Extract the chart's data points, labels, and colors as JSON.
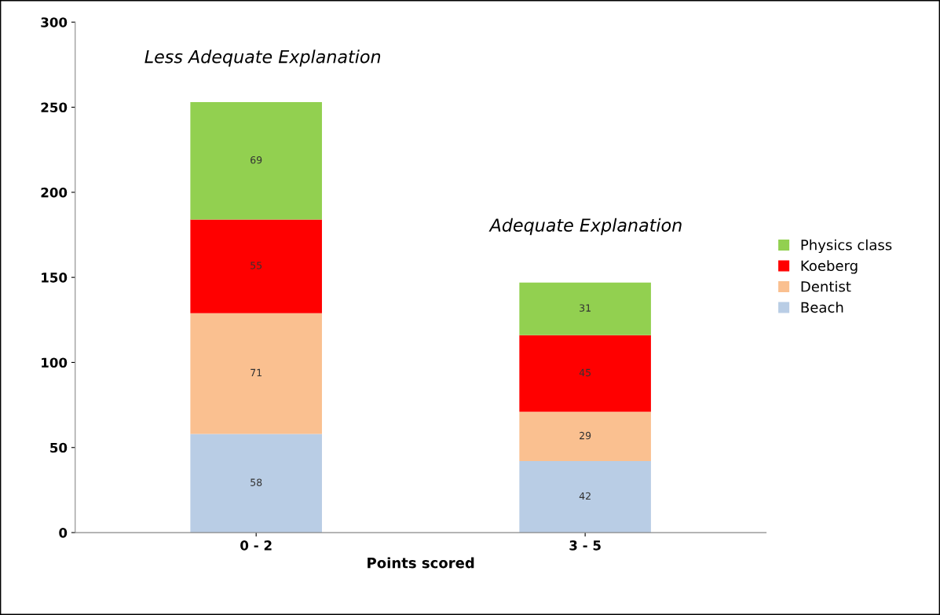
{
  "chart_data": {
    "type": "bar",
    "stacked": true,
    "xlabel": "Points scored",
    "categories": [
      "0 - 2",
      "3 - 5"
    ],
    "series": [
      {
        "name": "Beach",
        "color": "#b9cde5",
        "values": [
          58,
          42
        ]
      },
      {
        "name": "Dentist",
        "color": "#fac090",
        "values": [
          71,
          29
        ]
      },
      {
        "name": "Koeberg",
        "color": "#ff0000",
        "values": [
          55,
          45
        ]
      },
      {
        "name": "Physics class",
        "color": "#92d050",
        "values": [
          69,
          31
        ]
      }
    ],
    "ylim": [
      0,
      300
    ],
    "yticks": [
      0,
      50,
      100,
      150,
      200,
      250,
      300
    ],
    "data_labels": true,
    "grid": false,
    "legend": "right",
    "annotations": [
      "Less Adequate Explanation",
      "Adequate Explanation"
    ]
  }
}
